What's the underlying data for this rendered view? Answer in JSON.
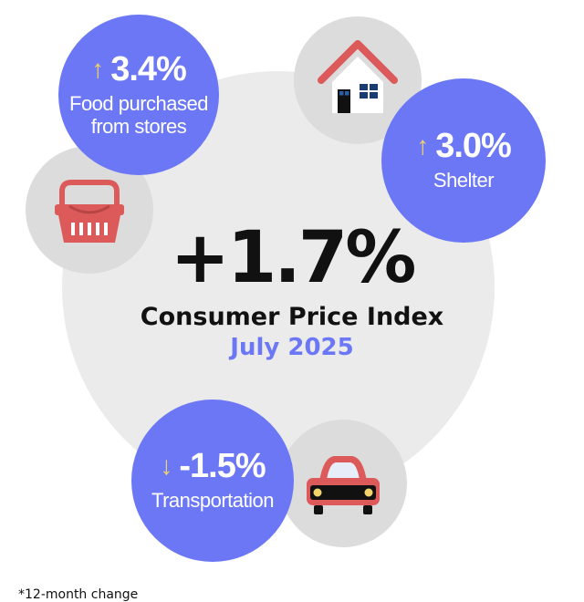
{
  "headline": {
    "value": "+1.7%",
    "title": "Consumer Price Index",
    "period": "July 2025"
  },
  "stats": {
    "food": {
      "value": "3.4%",
      "label_line1": "Food purchased",
      "label_line2": "from stores",
      "direction": "up",
      "icon": "basket-icon"
    },
    "shelter": {
      "value": "3.0%",
      "label_line1": "Shelter",
      "direction": "up",
      "icon": "house-icon"
    },
    "transportation": {
      "value": "-1.5%",
      "label_line1": "Transportation",
      "direction": "down",
      "icon": "car-icon"
    }
  },
  "arrows": {
    "up": "↑",
    "down": "↓"
  },
  "footnote": "*12-month change",
  "colors": {
    "accent": "#6b77f5",
    "arrow": "#f3d36b",
    "icon_red": "#dc5a5a",
    "background_circle": "#ebebeb",
    "icon_circle": "#dcdcdc"
  }
}
